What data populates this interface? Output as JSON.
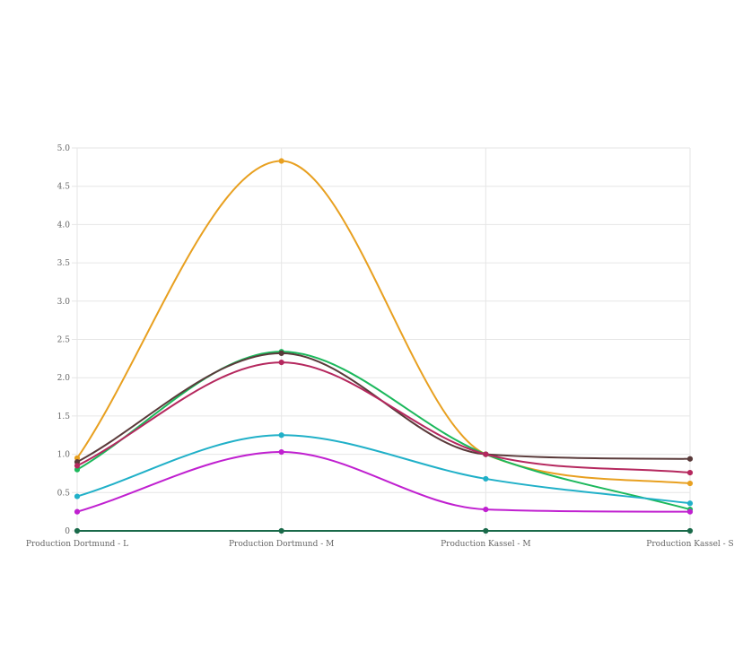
{
  "chart_data": {
    "type": "line",
    "categories": [
      "Production Dortmund - L",
      "Production Dortmund - M",
      "Production Kassel - M",
      "Production Kassel - S"
    ],
    "yticks": [
      "0",
      "0.5",
      "1.0",
      "1.5",
      "2.0",
      "2.5",
      "3.0",
      "3.5",
      "4.0",
      "4.5",
      "5.0"
    ],
    "ylim": [
      0,
      5
    ],
    "grid": true,
    "smooth": true,
    "series": [
      {
        "color": "#e8a020",
        "values": [
          0.95,
          4.83,
          1.0,
          0.62
        ]
      },
      {
        "color": "#1cb85c",
        "values": [
          0.8,
          2.34,
          1.0,
          0.28
        ]
      },
      {
        "color": "#5a3a3a",
        "values": [
          0.9,
          2.32,
          1.0,
          0.94
        ]
      },
      {
        "color": "#b5285e",
        "values": [
          0.85,
          2.2,
          1.0,
          0.76
        ]
      },
      {
        "color": "#20b0c8",
        "values": [
          0.45,
          1.25,
          0.68,
          0.36
        ]
      },
      {
        "color": "#c020d0",
        "values": [
          0.25,
          1.03,
          0.28,
          0.25
        ]
      },
      {
        "color": "#1a6a4a",
        "values": [
          0,
          0,
          0,
          0
        ]
      }
    ]
  }
}
